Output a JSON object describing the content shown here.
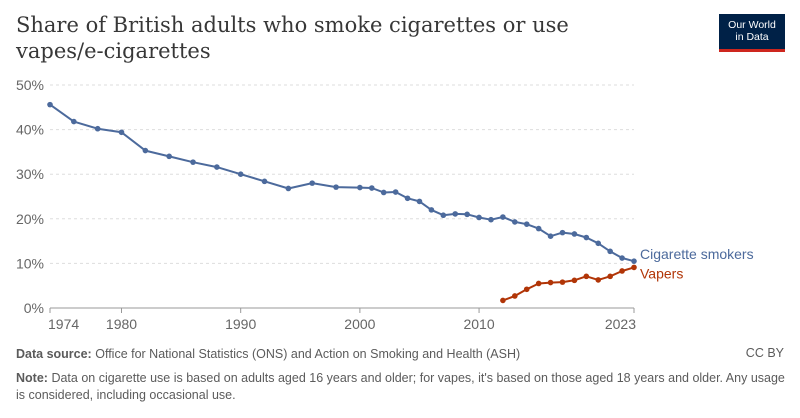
{
  "title": "Share of British adults who smoke cigarettes or use vapes/e-cigarettes",
  "logo": {
    "line1": "Our World",
    "line2": "in Data"
  },
  "footer": {
    "source_label": "Data source:",
    "source_text": "Office for National Statistics (ONS) and Action on Smoking and Health (ASH)",
    "license": "CC BY",
    "note_label": "Note:",
    "note_text": "Data on cigarette use is based on adults aged 16 years and older; for vapes, it's based on those aged 18 years and older. Any usage is considered, including occasional use."
  },
  "colors": {
    "smokers": "#4c6a9c",
    "vapers": "#b13507",
    "grid": "#dddddd",
    "axis_text": "#666666"
  },
  "chart_data": {
    "type": "line",
    "xlim": [
      1974,
      2023
    ],
    "ylim": [
      0,
      50
    ],
    "y_ticks": [
      0,
      10,
      20,
      30,
      40,
      50
    ],
    "y_tick_labels": [
      "0%",
      "10%",
      "20%",
      "30%",
      "40%",
      "50%"
    ],
    "x_ticks": [
      1974,
      1980,
      1990,
      2000,
      2010,
      2023
    ],
    "x_tick_labels": [
      "1974",
      "1980",
      "1990",
      "2000",
      "2010",
      "2023"
    ],
    "grid": "horizontal dashed",
    "legend": "inline labels at line ends",
    "series": [
      {
        "name": "Cigarette smokers",
        "color": "#4c6a9c",
        "x": [
          1974,
          1976,
          1978,
          1980,
          1982,
          1984,
          1986,
          1988,
          1990,
          1992,
          1994,
          1996,
          1998,
          2000,
          2001,
          2002,
          2003,
          2004,
          2005,
          2006,
          2007,
          2008,
          2009,
          2010,
          2011,
          2012,
          2013,
          2014,
          2015,
          2016,
          2017,
          2018,
          2019,
          2020,
          2021,
          2022,
          2023
        ],
        "y": [
          45.6,
          41.8,
          40.2,
          39.4,
          35.3,
          34.0,
          32.7,
          31.6,
          30.0,
          28.4,
          26.8,
          28.0,
          27.1,
          27.0,
          26.9,
          25.9,
          26.0,
          24.6,
          23.9,
          22.0,
          20.8,
          21.1,
          21.0,
          20.3,
          19.8,
          20.4,
          19.3,
          18.8,
          17.8,
          16.1,
          16.9,
          16.6,
          15.8,
          14.5,
          12.7,
          11.2,
          10.5
        ]
      },
      {
        "name": "Vapers",
        "color": "#b13507",
        "x": [
          2012,
          2013,
          2014,
          2015,
          2016,
          2017,
          2018,
          2019,
          2020,
          2021,
          2022,
          2023
        ],
        "y": [
          1.7,
          2.7,
          4.2,
          5.5,
          5.7,
          5.8,
          6.2,
          7.1,
          6.3,
          7.1,
          8.3,
          9.1
        ]
      }
    ]
  }
}
